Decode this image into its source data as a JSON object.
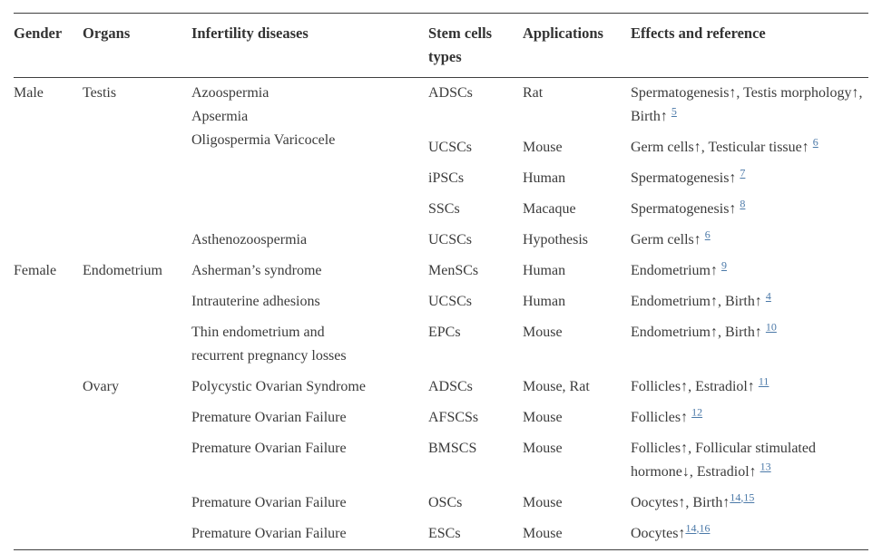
{
  "colors": {
    "text": "#3b3b3b",
    "border": "#3f3f3f",
    "link": "#4b79a8",
    "background": "#ffffff"
  },
  "table": {
    "columns": [
      {
        "key": "gender",
        "label": "Gender"
      },
      {
        "key": "organs",
        "label": "Organs"
      },
      {
        "key": "disease",
        "label": "Infertility diseases"
      },
      {
        "key": "stem",
        "label": "Stem cells types"
      },
      {
        "key": "app",
        "label": "Applications"
      },
      {
        "key": "effects",
        "label": "Effects and reference"
      }
    ],
    "rows": [
      {
        "cells": [
          {
            "col": "gender",
            "text": "Male",
            "rowspan": 5
          },
          {
            "col": "organs",
            "text": "Testis",
            "rowspan": 5
          },
          {
            "col": "disease",
            "lines": [
              "Azoospermia",
              "Apsermia",
              "Oligospermia Varicocele"
            ],
            "rowspan": 2
          },
          {
            "col": "stem",
            "text": "ADSCs"
          },
          {
            "col": "app",
            "text": "Rat"
          },
          {
            "col": "effects",
            "segments": [
              {
                "text": "Spermatogenesis↑, Testis morphology↑, Birth↑ "
              },
              {
                "refs": [
                  "5"
                ]
              }
            ]
          }
        ]
      },
      {
        "cells": [
          {
            "col": "stem",
            "text": "UCSCs"
          },
          {
            "col": "app",
            "text": "Mouse"
          },
          {
            "col": "effects",
            "segments": [
              {
                "text": "Germ cells↑, Testicular tissue↑ "
              },
              {
                "refs": [
                  "6"
                ]
              }
            ]
          }
        ]
      },
      {
        "cells": [
          {
            "col": "disease",
            "text": ""
          },
          {
            "col": "stem",
            "text": "iPSCs"
          },
          {
            "col": "app",
            "text": "Human"
          },
          {
            "col": "effects",
            "segments": [
              {
                "text": "Spermatogenesis↑ "
              },
              {
                "refs": [
                  "7"
                ]
              }
            ]
          }
        ]
      },
      {
        "cells": [
          {
            "col": "disease",
            "text": ""
          },
          {
            "col": "stem",
            "text": "SSCs"
          },
          {
            "col": "app",
            "text": "Macaque"
          },
          {
            "col": "effects",
            "segments": [
              {
                "text": "Spermatogenesis↑ "
              },
              {
                "refs": [
                  "8"
                ]
              }
            ]
          }
        ]
      },
      {
        "cells": [
          {
            "col": "disease",
            "text": "Asthenozoospermia"
          },
          {
            "col": "stem",
            "text": "UCSCs"
          },
          {
            "col": "app",
            "text": "Hypothesis"
          },
          {
            "col": "effects",
            "segments": [
              {
                "text": "Germ cells↑ "
              },
              {
                "refs": [
                  "6"
                ]
              }
            ]
          }
        ]
      },
      {
        "cells": [
          {
            "col": "gender",
            "text": "Female",
            "rowspan": 8
          },
          {
            "col": "organs",
            "text": "Endometrium",
            "rowspan": 3
          },
          {
            "col": "disease",
            "text": "Asherman’s syndrome"
          },
          {
            "col": "stem",
            "text": "MenSCs"
          },
          {
            "col": "app",
            "text": "Human"
          },
          {
            "col": "effects",
            "segments": [
              {
                "text": "Endometrium↑ "
              },
              {
                "refs": [
                  "9"
                ]
              }
            ]
          }
        ]
      },
      {
        "cells": [
          {
            "col": "disease",
            "text": "Intrauterine adhesions"
          },
          {
            "col": "stem",
            "text": "UCSCs"
          },
          {
            "col": "app",
            "text": "Human"
          },
          {
            "col": "effects",
            "segments": [
              {
                "text": "Endometrium↑, Birth↑ "
              },
              {
                "refs": [
                  "4"
                ]
              }
            ]
          }
        ]
      },
      {
        "cells": [
          {
            "col": "disease",
            "lines": [
              "Thin endometrium and",
              "recurrent pregnancy losses"
            ]
          },
          {
            "col": "stem",
            "text": "EPCs"
          },
          {
            "col": "app",
            "text": "Mouse"
          },
          {
            "col": "effects",
            "segments": [
              {
                "text": "Endometrium↑, Birth↑ "
              },
              {
                "refs": [
                  "10"
                ]
              }
            ]
          }
        ]
      },
      {
        "cells": [
          {
            "col": "organs",
            "text": "Ovary",
            "rowspan": 5
          },
          {
            "col": "disease",
            "text": "Polycystic Ovarian Syndrome"
          },
          {
            "col": "stem",
            "text": "ADSCs"
          },
          {
            "col": "app",
            "text": "Mouse, Rat"
          },
          {
            "col": "effects",
            "segments": [
              {
                "text": "Follicles↑, Estradiol↑ "
              },
              {
                "refs": [
                  "11"
                ]
              }
            ]
          }
        ]
      },
      {
        "cells": [
          {
            "col": "disease",
            "text": "Premature Ovarian Failure"
          },
          {
            "col": "stem",
            "text": "AFSCSs"
          },
          {
            "col": "app",
            "text": "Mouse"
          },
          {
            "col": "effects",
            "segments": [
              {
                "text": "Follicles↑ "
              },
              {
                "refs": [
                  "12"
                ]
              }
            ]
          }
        ]
      },
      {
        "cells": [
          {
            "col": "disease",
            "text": "Premature Ovarian Failure"
          },
          {
            "col": "stem",
            "text": "BMSCS"
          },
          {
            "col": "app",
            "text": "Mouse"
          },
          {
            "col": "effects",
            "segments": [
              {
                "text": "Follicles↑, Follicular stimulated hormone↓, Estradiol↑ "
              },
              {
                "refs": [
                  "13"
                ]
              }
            ]
          }
        ]
      },
      {
        "cells": [
          {
            "col": "disease",
            "text": "Premature Ovarian Failure"
          },
          {
            "col": "stem",
            "text": "OSCs"
          },
          {
            "col": "app",
            "text": "Mouse"
          },
          {
            "col": "effects",
            "segments": [
              {
                "text": "Oocytes↑, Birth↑"
              },
              {
                "refs": [
                  "14",
                  "15"
                ]
              }
            ]
          }
        ]
      },
      {
        "cells": [
          {
            "col": "disease",
            "text": "Premature Ovarian Failure"
          },
          {
            "col": "stem",
            "text": "ESCs"
          },
          {
            "col": "app",
            "text": "Mouse"
          },
          {
            "col": "effects",
            "segments": [
              {
                "text": "Oocytes↑"
              },
              {
                "refs": [
                  "14",
                  "16"
                ]
              }
            ]
          }
        ]
      }
    ]
  }
}
